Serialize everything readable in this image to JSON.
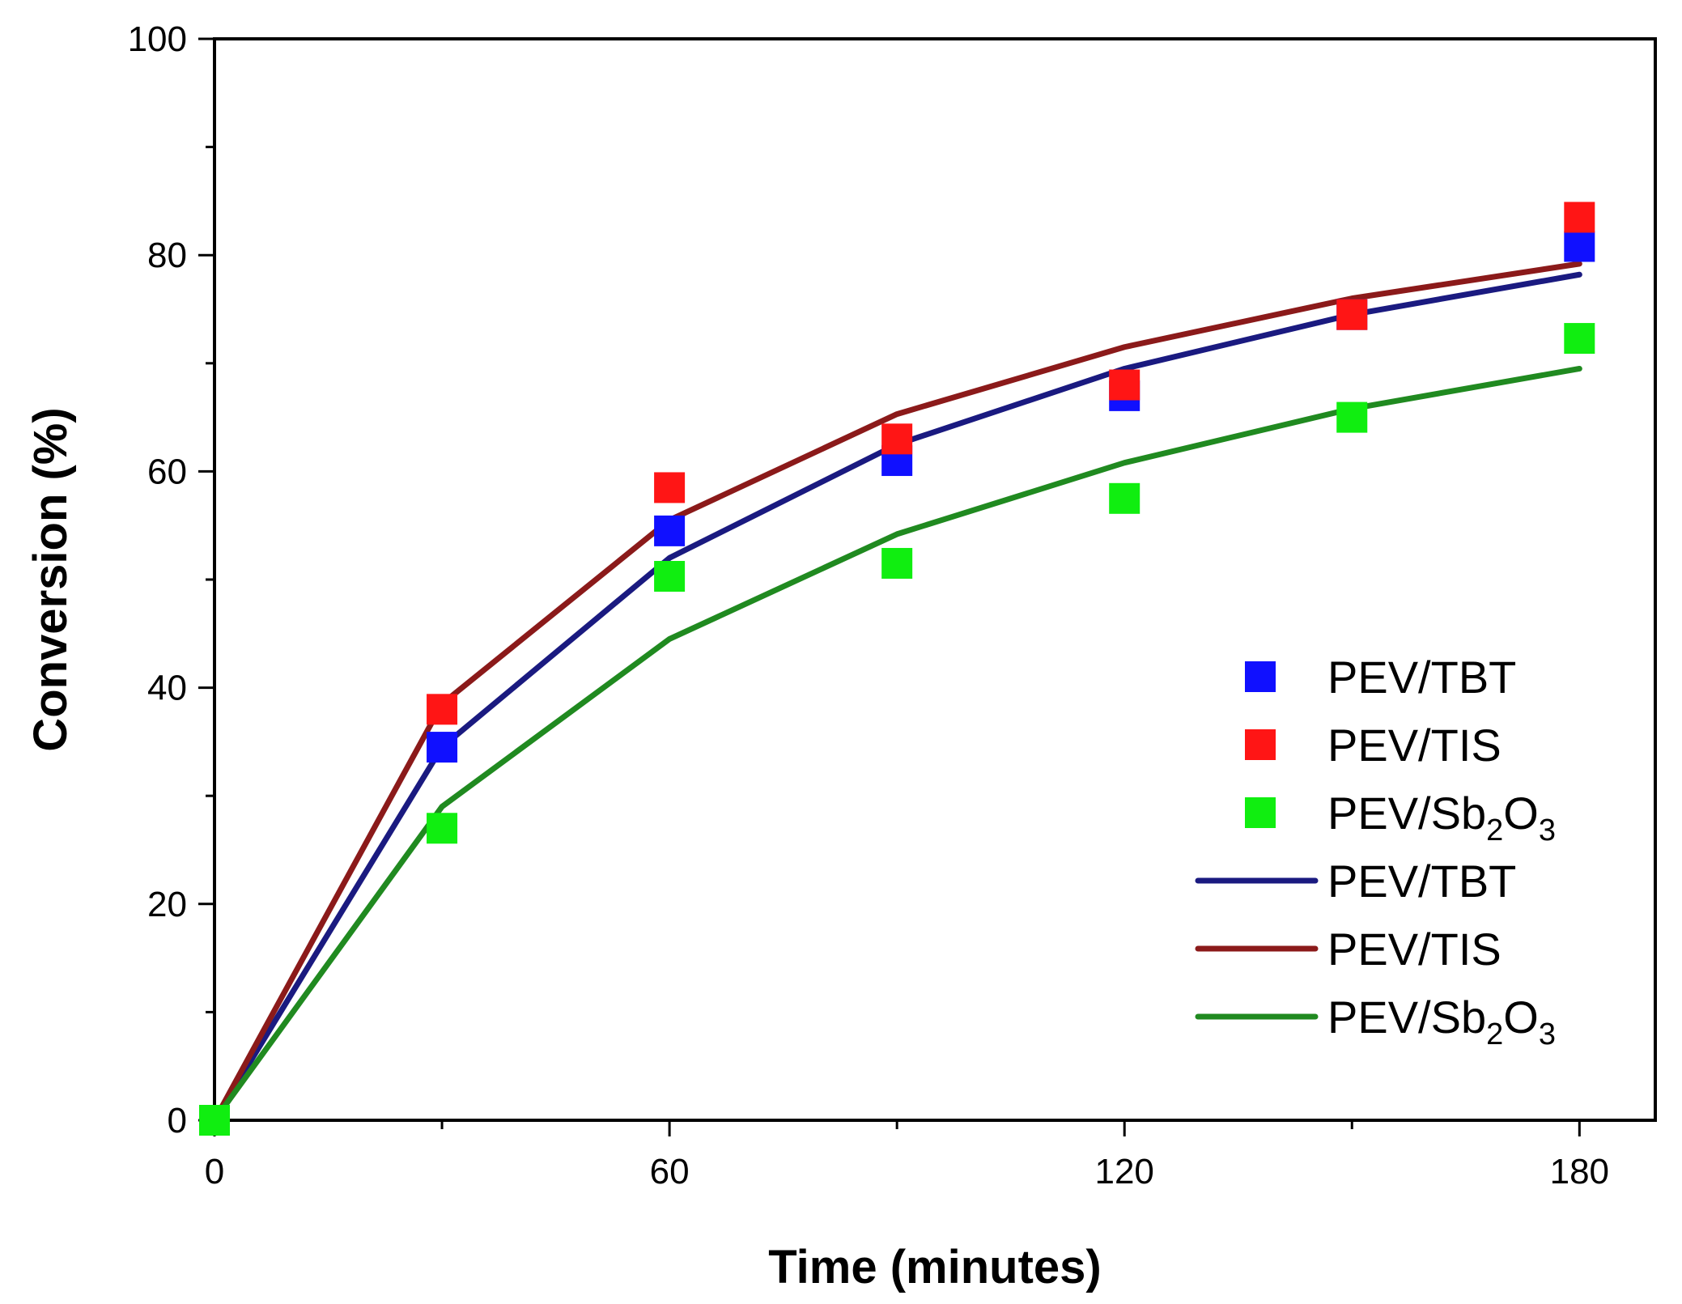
{
  "chart_data": {
    "type": "scatter+line",
    "xlabel": "Time (minutes)",
    "ylabel": "Conversion (%)",
    "xlim": [
      0,
      190
    ],
    "ylim": [
      0,
      100
    ],
    "xticks": [
      0,
      60,
      120,
      180
    ],
    "xminor_ticks": [
      30,
      90,
      150
    ],
    "yticks": [
      0,
      20,
      40,
      60,
      80,
      100
    ],
    "yminor_ticks": [
      10,
      30,
      50,
      70,
      90
    ],
    "xtick_labels": [
      "0",
      "60",
      "120",
      "180"
    ],
    "ytick_labels": [
      "0",
      "20",
      "40",
      "60",
      "80",
      "100"
    ],
    "grid": false,
    "legend_position": "bottom-right",
    "series": [
      {
        "name": "PEV/TBT",
        "kind": "scatter",
        "marker": "square",
        "color": "#1010ff",
        "x": [
          0,
          30,
          60,
          90,
          120,
          150,
          180
        ],
        "y": [
          0,
          34.5,
          54.5,
          61,
          67,
          74.5,
          80.8
        ]
      },
      {
        "name": "PEV/TIS",
        "kind": "scatter",
        "marker": "square",
        "color": "#ff1515",
        "x": [
          0,
          30,
          60,
          90,
          120,
          150,
          180
        ],
        "y": [
          0,
          38,
          58.5,
          63,
          68,
          74.5,
          83.5
        ]
      },
      {
        "name": "PEV/Sb2O3",
        "kind": "scatter",
        "marker": "square",
        "color": "#10ee10",
        "x": [
          0,
          30,
          60,
          90,
          120,
          150,
          180
        ],
        "y": [
          0,
          27,
          50.3,
          51.5,
          57.5,
          65,
          72.3
        ]
      },
      {
        "name": "PEV/TBT",
        "kind": "line",
        "color": "#1a1a80",
        "x": [
          0,
          30,
          60,
          90,
          120,
          150,
          180
        ],
        "y": [
          0,
          34.5,
          52,
          62.5,
          69.5,
          74.5,
          78.2
        ]
      },
      {
        "name": "PEV/TIS",
        "kind": "line",
        "color": "#8b1a1a",
        "x": [
          0,
          30,
          60,
          90,
          120,
          150,
          180
        ],
        "y": [
          0,
          38.5,
          55.5,
          65.3,
          71.5,
          76,
          79.2
        ]
      },
      {
        "name": "PEV/Sb2O3",
        "kind": "line",
        "color": "#208a20",
        "x": [
          0,
          30,
          60,
          90,
          120,
          150,
          180
        ],
        "y": [
          0,
          29,
          44.5,
          54.2,
          60.8,
          65.8,
          69.5
        ]
      }
    ],
    "legend": [
      {
        "name": "PEV/TBT",
        "base": "PEV/TBT",
        "kind": "scatter",
        "color": "#1010ff"
      },
      {
        "name": "PEV/TIS",
        "base": "PEV/TIS",
        "kind": "scatter",
        "color": "#ff1515"
      },
      {
        "name": "PEV/Sb2O3",
        "base": "PEV/Sb",
        "sub1": "2",
        "mid": "O",
        "sub2": "3",
        "kind": "scatter",
        "color": "#10ee10"
      },
      {
        "name": "PEV/TBT",
        "base": "PEV/TBT",
        "kind": "line",
        "color": "#1a1a80"
      },
      {
        "name": "PEV/TIS",
        "base": "PEV/TIS",
        "kind": "line",
        "color": "#8b1a1a"
      },
      {
        "name": "PEV/Sb2O3",
        "base": "PEV/Sb",
        "sub1": "2",
        "mid": "O",
        "sub2": "3",
        "kind": "line",
        "color": "#208a20"
      }
    ]
  }
}
